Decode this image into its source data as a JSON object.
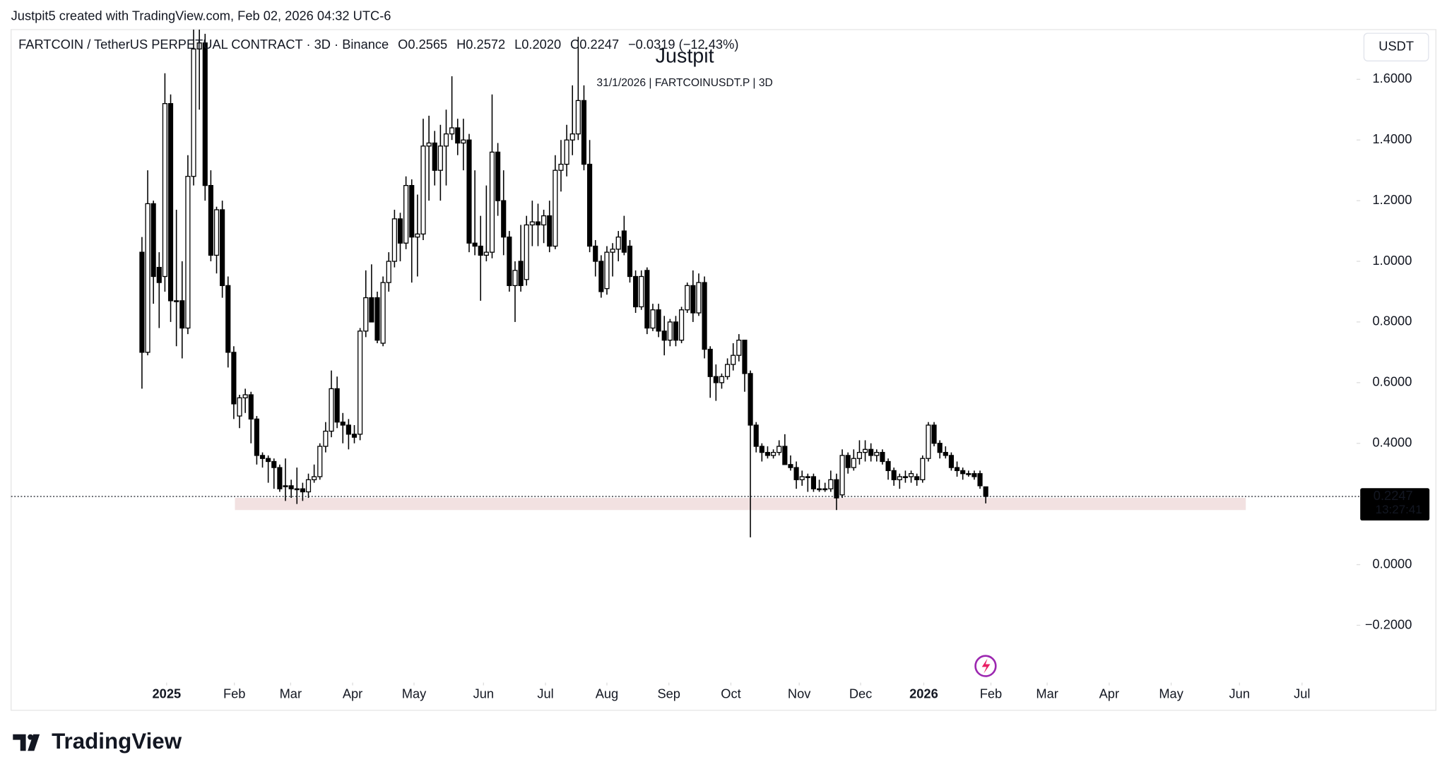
{
  "header": "Justpit5 created with TradingView.com, Feb 02, 2026 04:32 UTC-6",
  "footer": "TradingView",
  "chart_data": {
    "type": "candlestick",
    "title": "Justpit",
    "subtitle": "31/1/2026 | FARTCOINUSDT.P | 3D",
    "symbol": "FARTCOIN / TetherUS PERPETUAL CONTRACT · 3D · Binance",
    "ohlc_labels": [
      "O0.2565",
      "H0.2572",
      "L0.2020",
      "C0.2247"
    ],
    "change_label": "−0.0319 (−12.43%)",
    "currency": "USDT",
    "last_price": 0.2247,
    "countdown": "13:27:41",
    "up_color": "#ffffff",
    "down_color": "#000000",
    "wick_color": "#000000",
    "zone": {
      "ylim": [
        0.18,
        0.22
      ],
      "xlim": [
        16.2,
        192.3
      ],
      "color": "#f2e1e1"
    },
    "xlim": [
      -22.8,
      211.6
    ],
    "xticks": [
      {
        "value": 4.3,
        "label": "2025"
      },
      {
        "value": 16.1,
        "label": "Feb"
      },
      {
        "value": 25.9,
        "label": "Mar"
      },
      {
        "value": 36.7,
        "label": "Apr"
      },
      {
        "value": 47.4,
        "label": "May"
      },
      {
        "value": 59.5,
        "label": "Jun"
      },
      {
        "value": 70.3,
        "label": "Jul"
      },
      {
        "value": 81.0,
        "label": "Aug"
      },
      {
        "value": 91.8,
        "label": "Sep"
      },
      {
        "value": 102.6,
        "label": "Oct"
      },
      {
        "value": 114.5,
        "label": "Nov"
      },
      {
        "value": 125.2,
        "label": "Dec"
      },
      {
        "value": 136.2,
        "label": "2026"
      },
      {
        "value": 147.9,
        "label": "Feb"
      },
      {
        "value": 157.7,
        "label": "Mar"
      },
      {
        "value": 168.5,
        "label": "Apr"
      },
      {
        "value": 179.3,
        "label": "May"
      },
      {
        "value": 191.2,
        "label": "Jun"
      },
      {
        "value": 202.1,
        "label": "Jul"
      }
    ],
    "ylim": [
      -0.389,
      1.764
    ],
    "yticks": [
      {
        "value": -0.2,
        "label": "−0.2000"
      },
      {
        "value": 0,
        "label": "0.0000"
      },
      {
        "value": 0.4,
        "label": "0.4000"
      },
      {
        "value": 0.6,
        "label": "0.6000"
      },
      {
        "value": 0.8,
        "label": "0.8000"
      },
      {
        "value": 1.0,
        "label": "1.0000"
      },
      {
        "value": 1.2,
        "label": "1.2000"
      },
      {
        "value": 1.4,
        "label": "1.4000"
      },
      {
        "value": 1.6,
        "label": "1.6000"
      }
    ],
    "candles": [
      {
        "open": 1.03,
        "high": 1.08,
        "low": 0.58,
        "close": 0.7
      },
      {
        "open": 0.7,
        "high": 1.3,
        "low": 0.69,
        "close": 1.19
      },
      {
        "open": 1.19,
        "high": 1.2,
        "low": 0.86,
        "close": 0.95
      },
      {
        "open": 0.98,
        "high": 1.03,
        "low": 0.78,
        "close": 0.93
      },
      {
        "open": 0.95,
        "high": 1.62,
        "low": 0.9,
        "close": 1.52
      },
      {
        "open": 1.52,
        "high": 1.55,
        "low": 0.8,
        "close": 0.87
      },
      {
        "open": 0.87,
        "high": 1.17,
        "low": 0.72,
        "close": 0.87
      },
      {
        "open": 0.87,
        "high": 1.0,
        "low": 0.68,
        "close": 0.78
      },
      {
        "open": 0.78,
        "high": 1.35,
        "low": 0.76,
        "close": 1.28
      },
      {
        "open": 1.28,
        "high": 1.82,
        "low": 1.25,
        "close": 1.7
      },
      {
        "open": 1.7,
        "high": 1.85,
        "low": 1.5,
        "close": 1.72
      },
      {
        "open": 1.72,
        "high": 1.75,
        "low": 1.2,
        "close": 1.25
      },
      {
        "open": 1.25,
        "high": 1.3,
        "low": 1.0,
        "close": 1.02
      },
      {
        "open": 1.02,
        "high": 1.18,
        "low": 0.96,
        "close": 1.17
      },
      {
        "open": 1.17,
        "high": 1.2,
        "low": 0.88,
        "close": 0.92
      },
      {
        "open": 0.92,
        "high": 0.95,
        "low": 0.65,
        "close": 0.7
      },
      {
        "open": 0.7,
        "high": 0.72,
        "low": 0.48,
        "close": 0.53
      },
      {
        "open": 0.49,
        "high": 0.56,
        "low": 0.45,
        "close": 0.55
      },
      {
        "open": 0.55,
        "high": 0.58,
        "low": 0.5,
        "close": 0.56
      },
      {
        "open": 0.56,
        "high": 0.57,
        "low": 0.4,
        "close": 0.48
      },
      {
        "open": 0.48,
        "high": 0.49,
        "low": 0.33,
        "close": 0.36
      },
      {
        "open": 0.36,
        "high": 0.37,
        "low": 0.32,
        "close": 0.35
      },
      {
        "open": 0.35,
        "high": 0.36,
        "low": 0.27,
        "close": 0.34
      },
      {
        "open": 0.34,
        "high": 0.35,
        "low": 0.25,
        "close": 0.32
      },
      {
        "open": 0.32,
        "high": 0.33,
        "low": 0.24,
        "close": 0.25
      },
      {
        "open": 0.26,
        "high": 0.35,
        "low": 0.21,
        "close": 0.26
      },
      {
        "open": 0.26,
        "high": 0.28,
        "low": 0.22,
        "close": 0.25
      },
      {
        "open": 0.25,
        "high": 0.32,
        "low": 0.2,
        "close": 0.25
      },
      {
        "open": 0.25,
        "high": 0.27,
        "low": 0.21,
        "close": 0.24
      },
      {
        "open": 0.24,
        "high": 0.3,
        "low": 0.22,
        "close": 0.28
      },
      {
        "open": 0.28,
        "high": 0.33,
        "low": 0.27,
        "close": 0.29
      },
      {
        "open": 0.29,
        "high": 0.4,
        "low": 0.28,
        "close": 0.39
      },
      {
        "open": 0.39,
        "high": 0.47,
        "low": 0.37,
        "close": 0.44
      },
      {
        "open": 0.44,
        "high": 0.64,
        "low": 0.42,
        "close": 0.58
      },
      {
        "open": 0.58,
        "high": 0.62,
        "low": 0.45,
        "close": 0.47
      },
      {
        "open": 0.47,
        "high": 0.5,
        "low": 0.4,
        "close": 0.46
      },
      {
        "open": 0.46,
        "high": 0.48,
        "low": 0.38,
        "close": 0.43
      },
      {
        "open": 0.43,
        "high": 0.46,
        "low": 0.4,
        "close": 0.42
      },
      {
        "open": 0.43,
        "high": 0.78,
        "low": 0.41,
        "close": 0.77
      },
      {
        "open": 0.77,
        "high": 0.97,
        "low": 0.75,
        "close": 0.88
      },
      {
        "open": 0.88,
        "high": 0.99,
        "low": 0.8,
        "close": 0.8
      },
      {
        "open": 0.88,
        "high": 0.9,
        "low": 0.73,
        "close": 0.74
      },
      {
        "open": 0.73,
        "high": 0.95,
        "low": 0.72,
        "close": 0.93
      },
      {
        "open": 0.93,
        "high": 1.03,
        "low": 0.9,
        "close": 1.0
      },
      {
        "open": 1.0,
        "high": 1.17,
        "low": 0.98,
        "close": 1.14
      },
      {
        "open": 1.14,
        "high": 1.16,
        "low": 1.0,
        "close": 1.06
      },
      {
        "open": 1.06,
        "high": 1.28,
        "low": 1.04,
        "close": 1.25
      },
      {
        "open": 1.25,
        "high": 1.27,
        "low": 0.93,
        "close": 1.08
      },
      {
        "open": 1.08,
        "high": 1.22,
        "low": 0.95,
        "close": 1.09
      },
      {
        "open": 1.09,
        "high": 1.47,
        "low": 1.07,
        "close": 1.38
      },
      {
        "open": 1.38,
        "high": 1.48,
        "low": 1.2,
        "close": 1.39
      },
      {
        "open": 1.39,
        "high": 1.43,
        "low": 1.25,
        "close": 1.3
      },
      {
        "open": 1.3,
        "high": 1.45,
        "low": 1.2,
        "close": 1.38
      },
      {
        "open": 1.38,
        "high": 1.5,
        "low": 1.25,
        "close": 1.42
      },
      {
        "open": 1.42,
        "high": 1.61,
        "low": 1.4,
        "close": 1.44
      },
      {
        "open": 1.44,
        "high": 1.47,
        "low": 1.35,
        "close": 1.39
      },
      {
        "open": 1.39,
        "high": 1.47,
        "low": 1.3,
        "close": 1.4
      },
      {
        "open": 1.4,
        "high": 1.42,
        "low": 1.03,
        "close": 1.06
      },
      {
        "open": 1.06,
        "high": 1.3,
        "low": 1.02,
        "close": 1.05
      },
      {
        "open": 1.05,
        "high": 1.15,
        "low": 0.87,
        "close": 1.02
      },
      {
        "open": 1.02,
        "high": 1.25,
        "low": 1.0,
        "close": 1.03
      },
      {
        "open": 1.03,
        "high": 1.55,
        "low": 1.01,
        "close": 1.36
      },
      {
        "open": 1.36,
        "high": 1.39,
        "low": 1.15,
        "close": 1.2
      },
      {
        "open": 1.2,
        "high": 1.3,
        "low": 1.02,
        "close": 1.08
      },
      {
        "open": 1.08,
        "high": 1.1,
        "low": 0.9,
        "close": 0.92
      },
      {
        "open": 0.92,
        "high": 1.0,
        "low": 0.8,
        "close": 0.97
      },
      {
        "open": 1.0,
        "high": 1.12,
        "low": 0.9,
        "close": 0.92
      },
      {
        "open": 0.94,
        "high": 1.15,
        "low": 0.92,
        "close": 1.12
      },
      {
        "open": 1.12,
        "high": 1.2,
        "low": 1.05,
        "close": 1.13
      },
      {
        "open": 1.13,
        "high": 1.19,
        "low": 1.05,
        "close": 1.12
      },
      {
        "open": 1.12,
        "high": 1.17,
        "low": 1.06,
        "close": 1.15
      },
      {
        "open": 1.15,
        "high": 1.2,
        "low": 1.03,
        "close": 1.05
      },
      {
        "open": 1.05,
        "high": 1.35,
        "low": 1.04,
        "close": 1.3
      },
      {
        "open": 1.3,
        "high": 1.4,
        "low": 1.23,
        "close": 1.32
      },
      {
        "open": 1.32,
        "high": 1.45,
        "low": 1.28,
        "close": 1.4
      },
      {
        "open": 1.4,
        "high": 1.58,
        "low": 1.35,
        "close": 1.42
      },
      {
        "open": 1.42,
        "high": 1.74,
        "low": 1.4,
        "close": 1.53
      },
      {
        "open": 1.53,
        "high": 1.58,
        "low": 1.3,
        "close": 1.32
      },
      {
        "open": 1.32,
        "high": 1.4,
        "low": 1.03,
        "close": 1.05
      },
      {
        "open": 1.05,
        "high": 1.07,
        "low": 0.95,
        "close": 1.0
      },
      {
        "open": 1.0,
        "high": 1.02,
        "low": 0.88,
        "close": 0.9
      },
      {
        "open": 0.91,
        "high": 1.05,
        "low": 0.89,
        "close": 1.03
      },
      {
        "open": 1.03,
        "high": 1.06,
        "low": 0.95,
        "close": 1.04
      },
      {
        "open": 1.04,
        "high": 1.1,
        "low": 1.0,
        "close": 1.08
      },
      {
        "open": 1.1,
        "high": 1.15,
        "low": 1.02,
        "close": 1.03
      },
      {
        "open": 1.05,
        "high": 1.07,
        "low": 0.93,
        "close": 0.95
      },
      {
        "open": 0.95,
        "high": 0.97,
        "low": 0.83,
        "close": 0.85
      },
      {
        "open": 0.85,
        "high": 0.97,
        "low": 0.84,
        "close": 0.95
      },
      {
        "open": 0.97,
        "high": 0.98,
        "low": 0.76,
        "close": 0.78
      },
      {
        "open": 0.78,
        "high": 0.86,
        "low": 0.77,
        "close": 0.84
      },
      {
        "open": 0.84,
        "high": 0.86,
        "low": 0.75,
        "close": 0.77
      },
      {
        "open": 0.77,
        "high": 0.82,
        "low": 0.69,
        "close": 0.74
      },
      {
        "open": 0.74,
        "high": 0.81,
        "low": 0.72,
        "close": 0.8
      },
      {
        "open": 0.8,
        "high": 0.82,
        "low": 0.72,
        "close": 0.74
      },
      {
        "open": 0.74,
        "high": 0.85,
        "low": 0.73,
        "close": 0.84
      },
      {
        "open": 0.84,
        "high": 0.93,
        "low": 0.83,
        "close": 0.92
      },
      {
        "open": 0.92,
        "high": 0.97,
        "low": 0.8,
        "close": 0.83
      },
      {
        "open": 0.83,
        "high": 0.96,
        "low": 0.82,
        "close": 0.93
      },
      {
        "open": 0.93,
        "high": 0.95,
        "low": 0.68,
        "close": 0.71
      },
      {
        "open": 0.71,
        "high": 0.72,
        "low": 0.55,
        "close": 0.62
      },
      {
        "open": 0.62,
        "high": 0.66,
        "low": 0.54,
        "close": 0.6
      },
      {
        "open": 0.6,
        "high": 0.63,
        "low": 0.58,
        "close": 0.62
      },
      {
        "open": 0.62,
        "high": 0.68,
        "low": 0.61,
        "close": 0.66
      },
      {
        "open": 0.66,
        "high": 0.73,
        "low": 0.64,
        "close": 0.69
      },
      {
        "open": 0.69,
        "high": 0.76,
        "low": 0.67,
        "close": 0.74
      },
      {
        "open": 0.74,
        "high": 0.74,
        "low": 0.57,
        "close": 0.63
      },
      {
        "open": 0.63,
        "high": 0.64,
        "low": 0.09,
        "close": 0.46
      },
      {
        "open": 0.46,
        "high": 0.47,
        "low": 0.37,
        "close": 0.39
      },
      {
        "open": 0.39,
        "high": 0.4,
        "low": 0.34,
        "close": 0.37
      },
      {
        "open": 0.37,
        "high": 0.39,
        "low": 0.35,
        "close": 0.36
      },
      {
        "open": 0.36,
        "high": 0.38,
        "low": 0.35,
        "close": 0.37
      },
      {
        "open": 0.37,
        "high": 0.41,
        "low": 0.36,
        "close": 0.39
      },
      {
        "open": 0.39,
        "high": 0.43,
        "low": 0.33,
        "close": 0.33
      },
      {
        "open": 0.33,
        "high": 0.36,
        "low": 0.31,
        "close": 0.32
      },
      {
        "open": 0.32,
        "high": 0.34,
        "low": 0.25,
        "close": 0.28
      },
      {
        "open": 0.28,
        "high": 0.31,
        "low": 0.26,
        "close": 0.29
      },
      {
        "open": 0.29,
        "high": 0.3,
        "low": 0.24,
        "close": 0.29
      },
      {
        "open": 0.29,
        "high": 0.3,
        "low": 0.24,
        "close": 0.25
      },
      {
        "open": 0.25,
        "high": 0.28,
        "low": 0.24,
        "close": 0.25
      },
      {
        "open": 0.25,
        "high": 0.27,
        "low": 0.24,
        "close": 0.25
      },
      {
        "open": 0.25,
        "high": 0.31,
        "low": 0.24,
        "close": 0.28
      },
      {
        "open": 0.28,
        "high": 0.3,
        "low": 0.18,
        "close": 0.22
      },
      {
        "open": 0.23,
        "high": 0.38,
        "low": 0.22,
        "close": 0.36
      },
      {
        "open": 0.36,
        "high": 0.37,
        "low": 0.3,
        "close": 0.32
      },
      {
        "open": 0.32,
        "high": 0.38,
        "low": 0.31,
        "close": 0.35
      },
      {
        "open": 0.35,
        "high": 0.41,
        "low": 0.33,
        "close": 0.37
      },
      {
        "open": 0.37,
        "high": 0.41,
        "low": 0.34,
        "close": 0.38
      },
      {
        "open": 0.38,
        "high": 0.4,
        "low": 0.34,
        "close": 0.36
      },
      {
        "open": 0.36,
        "high": 0.38,
        "low": 0.34,
        "close": 0.37
      },
      {
        "open": 0.37,
        "high": 0.38,
        "low": 0.33,
        "close": 0.34
      },
      {
        "open": 0.34,
        "high": 0.35,
        "low": 0.28,
        "close": 0.31
      },
      {
        "open": 0.31,
        "high": 0.32,
        "low": 0.26,
        "close": 0.28
      },
      {
        "open": 0.28,
        "high": 0.3,
        "low": 0.25,
        "close": 0.29
      },
      {
        "open": 0.29,
        "high": 0.31,
        "low": 0.27,
        "close": 0.29
      },
      {
        "open": 0.29,
        "high": 0.31,
        "low": 0.27,
        "close": 0.3
      },
      {
        "open": 0.29,
        "high": 0.3,
        "low": 0.26,
        "close": 0.28
      },
      {
        "open": 0.28,
        "high": 0.36,
        "low": 0.27,
        "close": 0.35
      },
      {
        "open": 0.35,
        "high": 0.47,
        "low": 0.34,
        "close": 0.46
      },
      {
        "open": 0.46,
        "high": 0.47,
        "low": 0.39,
        "close": 0.4
      },
      {
        "open": 0.4,
        "high": 0.41,
        "low": 0.35,
        "close": 0.37
      },
      {
        "open": 0.37,
        "high": 0.39,
        "low": 0.35,
        "close": 0.36
      },
      {
        "open": 0.36,
        "high": 0.37,
        "low": 0.31,
        "close": 0.32
      },
      {
        "open": 0.32,
        "high": 0.34,
        "low": 0.29,
        "close": 0.31
      },
      {
        "open": 0.31,
        "high": 0.32,
        "low": 0.28,
        "close": 0.3
      },
      {
        "open": 0.3,
        "high": 0.31,
        "low": 0.29,
        "close": 0.3
      },
      {
        "open": 0.3,
        "high": 0.31,
        "low": 0.28,
        "close": 0.29
      },
      {
        "open": 0.3,
        "high": 0.31,
        "low": 0.25,
        "close": 0.26
      },
      {
        "open": 0.2565,
        "high": 0.2572,
        "low": 0.202,
        "close": 0.2247
      }
    ]
  }
}
